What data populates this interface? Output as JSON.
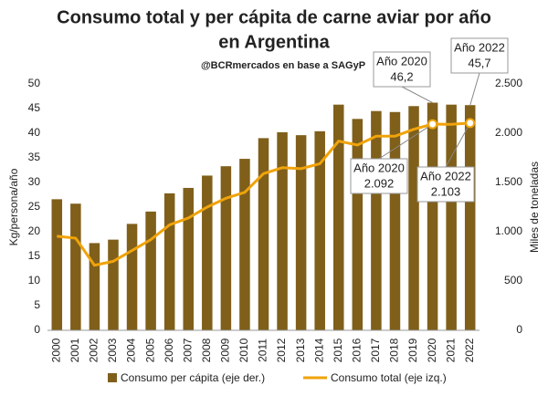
{
  "chart_data": {
    "type": "bar-line",
    "title": [
      "Consumo total y per cápita de carne aviar por año",
      "en Argentina"
    ],
    "subtitle": "@BCRmercados en base a SAGyP",
    "y_label": "Kg/persona/año",
    "y2_label": "Miles de toneladas",
    "categories": [
      "2000",
      "2001",
      "2002",
      "2003",
      "2004",
      "2005",
      "2006",
      "2007",
      "2008",
      "2009",
      "2010",
      "2011",
      "2012",
      "2013",
      "2014",
      "2015",
      "2016",
      "2017",
      "2018",
      "2019",
      "2020",
      "2021",
      "2022"
    ],
    "series": [
      {
        "name": "Consumo per cápita (eje der.)",
        "type": "bar",
        "color": "#7f5f1a",
        "values": [
          26.6,
          25.7,
          17.7,
          18.4,
          21.6,
          24.1,
          27.8,
          28.9,
          31.4,
          33.3,
          34.8,
          39.0,
          40.2,
          39.6,
          40.4,
          45.8,
          42.9,
          44.5,
          44.3,
          45.5,
          46.2,
          45.8,
          45.7
        ],
        "value_labels": [
          null,
          null,
          null,
          null,
          null,
          null,
          null,
          null,
          null,
          null,
          null,
          null,
          null,
          null,
          null,
          null,
          null,
          null,
          null,
          null,
          "46,2",
          null,
          "45,7"
        ]
      },
      {
        "name": "Consumo total (eje izq.)",
        "type": "line",
        "axis": "y2",
        "color": "#f0a30a",
        "values": [
          955,
          935,
          660,
          700,
          810,
          920,
          1070,
          1140,
          1250,
          1340,
          1400,
          1590,
          1650,
          1640,
          1690,
          1920,
          1880,
          1970,
          1970,
          2040,
          2092,
          2090,
          2103
        ],
        "value_labels": [
          null,
          null,
          null,
          null,
          null,
          null,
          null,
          null,
          null,
          null,
          null,
          null,
          null,
          null,
          null,
          null,
          null,
          null,
          null,
          null,
          "2.092",
          null,
          "2.103"
        ]
      }
    ],
    "annotations": [
      "Año 2020",
      "Año 2022",
      "Año 2020",
      "Año 2022"
    ],
    "ylim": [
      0,
      50
    ],
    "yticks": [
      0,
      5,
      10,
      15,
      20,
      25,
      30,
      35,
      40,
      45,
      50
    ],
    "y2lim": [
      0,
      2500
    ],
    "y2ticks": [
      0,
      500,
      {
        "value": 1000,
        "label": "1.000"
      },
      {
        "value": 1500,
        "label": "1.500"
      },
      {
        "value": 2000,
        "label": "2.000"
      },
      {
        "value": 2500,
        "label": "2.500"
      }
    ],
    "grid": false,
    "legend": "bottom"
  }
}
